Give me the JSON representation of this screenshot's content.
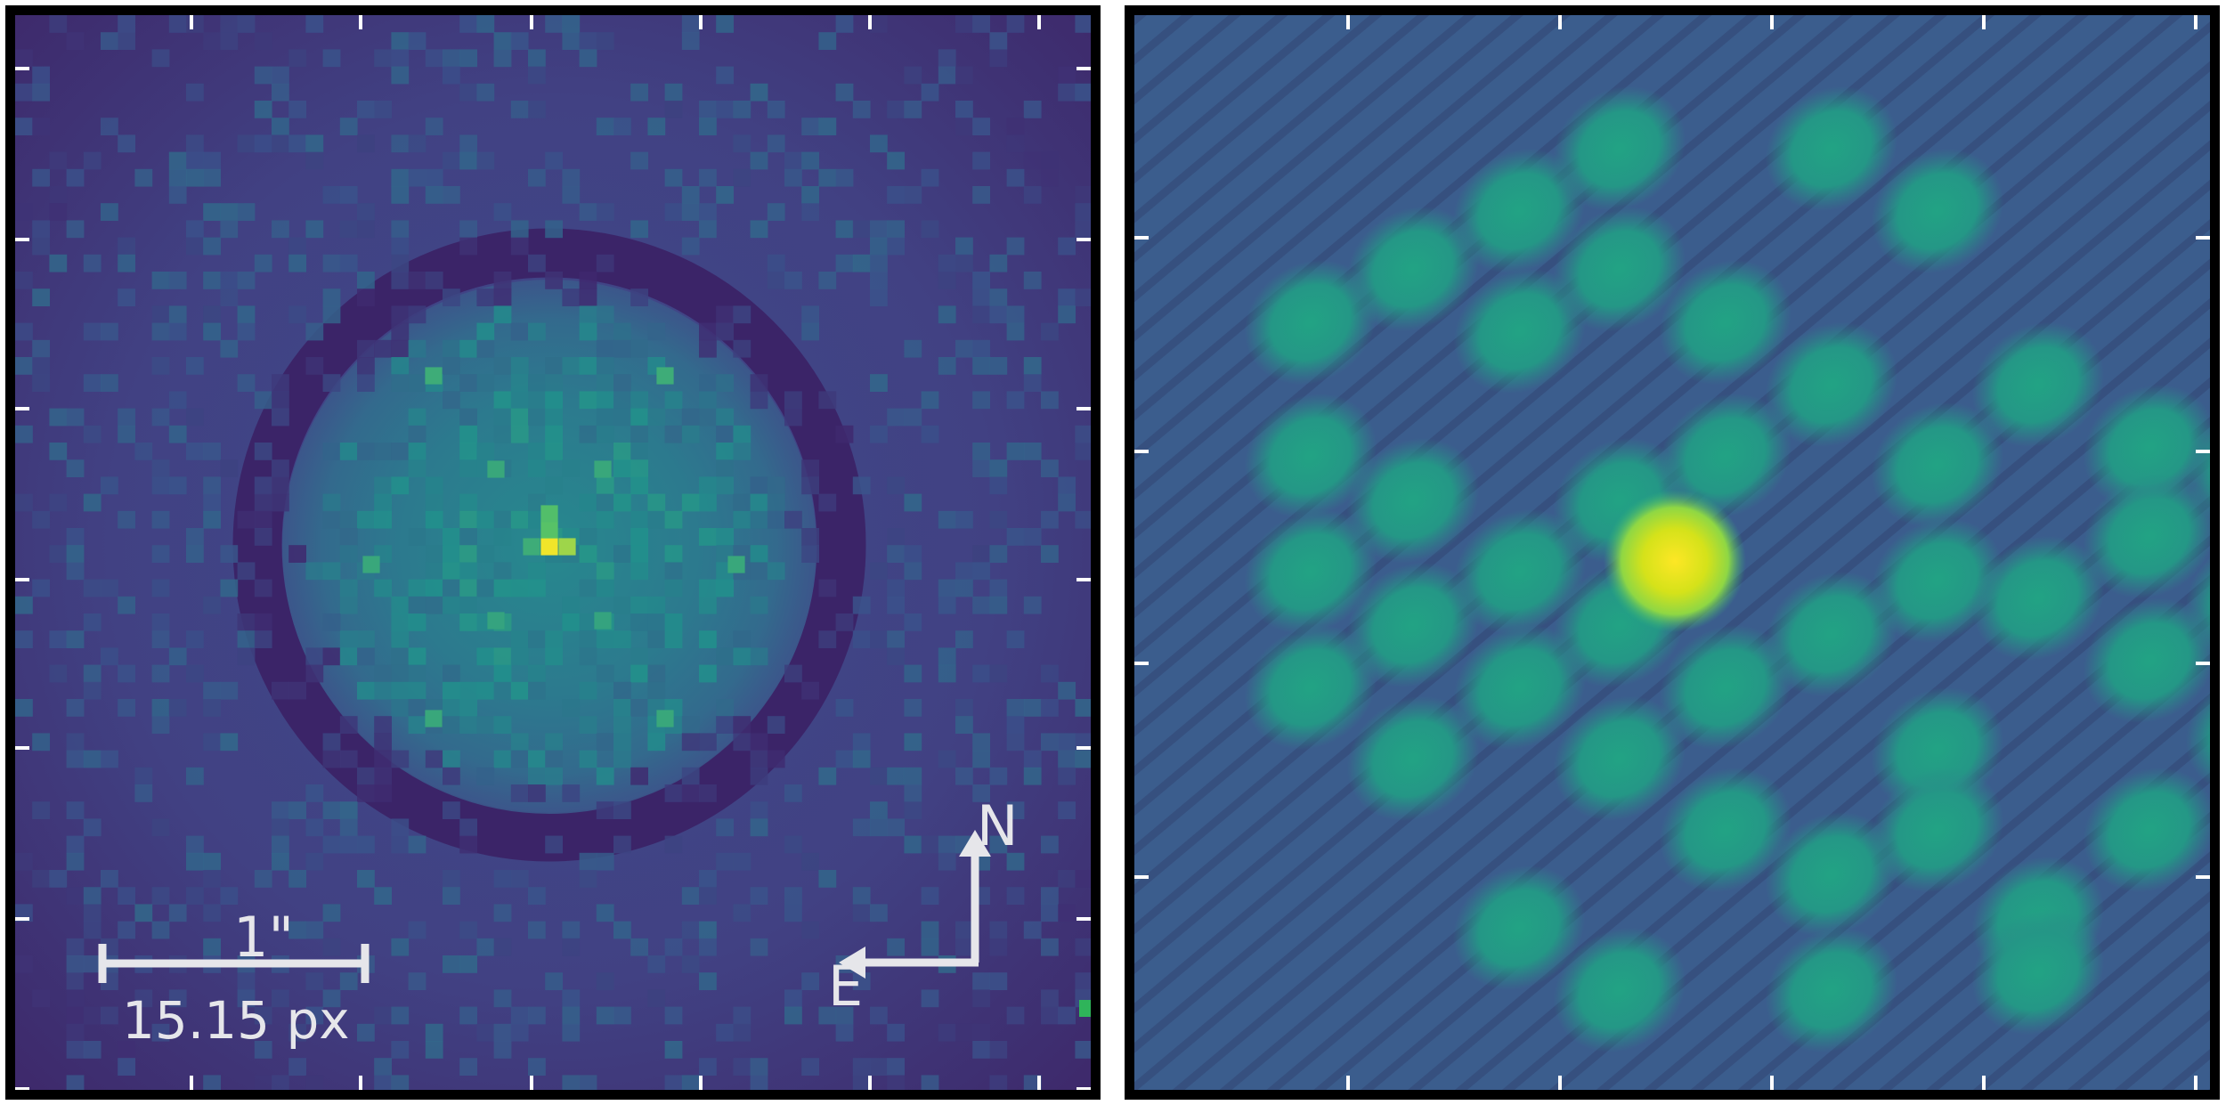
{
  "left_panel": {
    "scale_bar": {
      "top_label": "1\"",
      "bottom_label": "15.15 px"
    },
    "compass": {
      "north_label": "N",
      "east_label": "E"
    },
    "colormap": [
      "#440154",
      "#3b528b",
      "#21918c",
      "#5ec962",
      "#fde725"
    ]
  },
  "right_panel": {
    "colormap": [
      "#440154",
      "#3b528b",
      "#21918c",
      "#5ec962",
      "#fde725"
    ]
  },
  "colors": {
    "frame": "#000000",
    "ticks": "#ffffff",
    "annotation": "#e6e6ea"
  }
}
